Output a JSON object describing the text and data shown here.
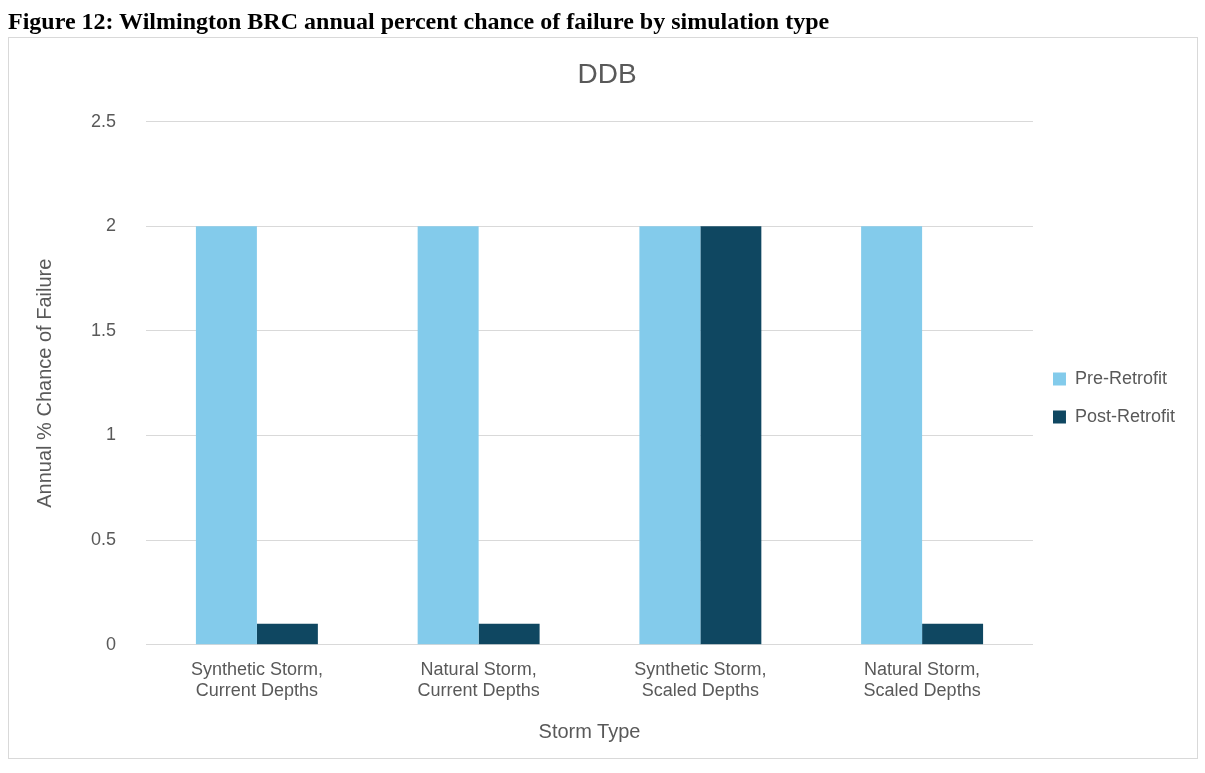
{
  "chart_data": {
    "type": "bar",
    "title": "DDB",
    "xlabel": "Storm Type",
    "ylabel": "Annual % Chance of Failure",
    "annotations": [
      "Figure 12: Wilmington BRC annual percent chance of failure by simulation type"
    ],
    "categories": [
      "Synthetic Storm, Current Depths",
      "Natural Storm, Current Depths",
      "Synthetic Storm, Scaled Depths",
      "Natural Storm, Scaled Depths"
    ],
    "series": [
      {
        "name": "Pre-Retrofit",
        "color": "#83cbeb",
        "values": [
          2,
          2,
          2,
          2
        ]
      },
      {
        "name": "Post-Retrofit",
        "color": "#0f4761",
        "values": [
          0.1,
          0.1,
          2,
          0.1
        ]
      }
    ],
    "ylim": [
      0,
      2.5
    ],
    "yticks": [
      0,
      0.5,
      1,
      1.5,
      2,
      2.5
    ],
    "grid": "y",
    "legend": "right"
  }
}
